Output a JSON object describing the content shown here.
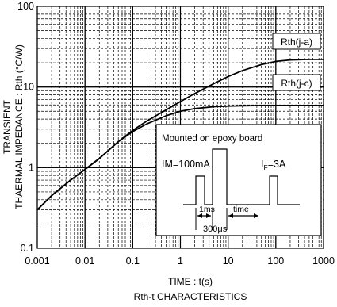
{
  "chart_data": {
    "type": "line",
    "title": "Rth-t CHARACTERISTICS",
    "xlabel": "TIME : t(s)",
    "ylabel_line1": "TRANSIENT",
    "ylabel_line2": "THAERMAL IMPEDANCE : Rth (°C/W)",
    "x_scale": "log",
    "y_scale": "log",
    "xlim": [
      0.001,
      1000
    ],
    "ylim": [
      0.1,
      100
    ],
    "x_ticks": [
      {
        "value": 0.001,
        "label": "0.001"
      },
      {
        "value": 0.01,
        "label": "0.01"
      },
      {
        "value": 0.1,
        "label": "0.1"
      },
      {
        "value": 1,
        "label": "1"
      },
      {
        "value": 10,
        "label": "10"
      },
      {
        "value": 100,
        "label": "100"
      },
      {
        "value": 1000,
        "label": "1000"
      }
    ],
    "y_ticks": [
      {
        "value": 0.1,
        "label": "0.1"
      },
      {
        "value": 1,
        "label": "1"
      },
      {
        "value": 10,
        "label": "10"
      },
      {
        "value": 100,
        "label": "100"
      }
    ],
    "grid": true,
    "series": [
      {
        "name": "Rth(j-a)",
        "x": [
          0.001,
          0.002,
          0.005,
          0.01,
          0.02,
          0.05,
          0.1,
          0.2,
          0.5,
          1,
          2,
          5,
          10,
          20,
          50,
          100,
          200,
          500,
          1000
        ],
        "y": [
          0.3,
          0.45,
          0.7,
          0.95,
          1.3,
          2.1,
          2.9,
          3.8,
          5.2,
          6.6,
          8.3,
          11,
          13.5,
          16,
          19,
          20.8,
          21.6,
          22,
          22
        ]
      },
      {
        "name": "Rth(j-c)",
        "x": [
          0.001,
          0.002,
          0.005,
          0.01,
          0.02,
          0.05,
          0.1,
          0.2,
          0.5,
          1,
          2,
          5,
          10,
          20,
          50,
          100,
          200,
          500,
          1000
        ],
        "y": [
          0.3,
          0.45,
          0.7,
          0.95,
          1.3,
          2.1,
          2.8,
          3.5,
          4.4,
          5,
          5.4,
          5.7,
          5.8,
          5.85,
          5.9,
          5.9,
          5.9,
          5.9,
          5.9
        ]
      }
    ],
    "inset": {
      "title": "Mounted on epoxy board",
      "im_label": "IM=100mA",
      "if_label_main": "I",
      "if_label_sub": "F",
      "if_label_value": "=3A",
      "label_1ms": "1ms",
      "label_time": "time",
      "label_300us": "300μs"
    }
  }
}
